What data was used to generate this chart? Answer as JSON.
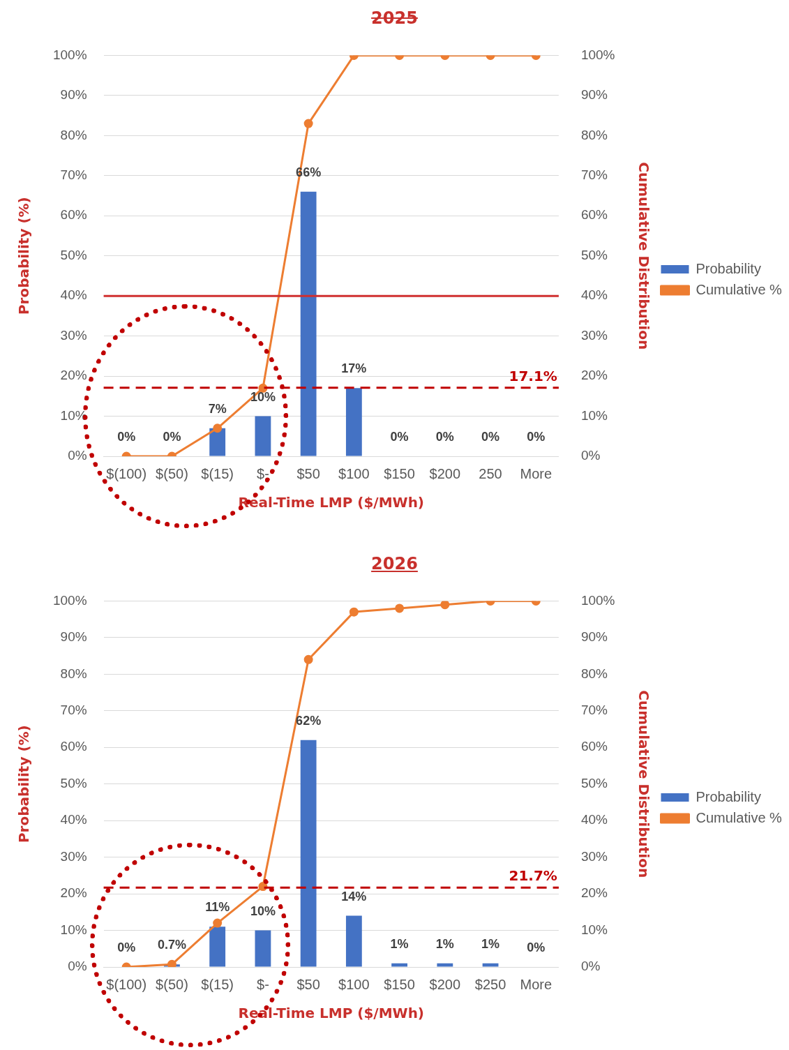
{
  "chart_data": [
    {
      "type": "bar",
      "title": "2025",
      "xlabel": "Real-Time LMP ($/MWh)",
      "ylabel": "Probability (%)",
      "y2label": "Cumulative Distribution",
      "categories": [
        "$(100)",
        "$(50)",
        "$(15)",
        "$-",
        "$50",
        "$100",
        "$150",
        "$200",
        "250",
        "More"
      ],
      "series": [
        {
          "name": "Probability",
          "color": "#4472c4",
          "values": [
            0,
            0,
            7,
            10,
            66,
            17,
            0,
            0,
            0,
            0
          ],
          "value_labels": [
            "0%",
            "0%",
            "7%",
            "10%",
            "66%",
            "17%",
            "0%",
            "0%",
            "0%",
            "0%"
          ]
        },
        {
          "name": "Cumulative %",
          "type": "line",
          "axis": "y2",
          "color": "#ed7d31",
          "marker": "circle",
          "values": [
            0,
            0,
            7,
            17,
            83,
            100,
            100,
            100,
            100,
            100
          ]
        }
      ],
      "ylim": [
        0,
        100
      ],
      "yticks": [
        {
          "value": 0,
          "label": "0%"
        },
        {
          "value": 10,
          "label": "10%"
        },
        {
          "value": 20,
          "label": "20%"
        },
        {
          "value": 30,
          "label": "30%"
        },
        {
          "value": 40,
          "label": "40%"
        },
        {
          "value": 50,
          "label": "50%"
        },
        {
          "value": 60,
          "label": "60%"
        },
        {
          "value": 70,
          "label": "70%"
        },
        {
          "value": 80,
          "label": "80%"
        },
        {
          "value": 90,
          "label": "90%"
        },
        {
          "value": 100,
          "label": "100%"
        }
      ],
      "y2lim": [
        0,
        100
      ],
      "y2ticks": [
        {
          "value": 0,
          "label": "0%"
        },
        {
          "value": 10,
          "label": "10%"
        },
        {
          "value": 20,
          "label": "20%"
        },
        {
          "value": 30,
          "label": "30%"
        },
        {
          "value": 40,
          "label": "40%"
        },
        {
          "value": 50,
          "label": "50%"
        },
        {
          "value": 60,
          "label": "60%"
        },
        {
          "value": 70,
          "label": "70%"
        },
        {
          "value": 80,
          "label": "80%"
        },
        {
          "value": 90,
          "label": "90%"
        },
        {
          "value": 100,
          "label": "100%"
        }
      ],
      "ref_lines": [
        {
          "axis": "y2",
          "value": 17.1,
          "label": "17.1%",
          "color": "#c00000",
          "line_style": "dashed"
        },
        {
          "axis": "y",
          "value": 40,
          "label": null,
          "color": "#d03030",
          "line_style": "solid"
        }
      ],
      "grid": "y",
      "legend": "right"
    },
    {
      "type": "bar",
      "title": "2026",
      "xlabel": "Real-Time LMP ($/MWh)",
      "ylabel": "Probability (%)",
      "y2label": "Cumulative Distribution",
      "categories": [
        "$(100)",
        "$(50)",
        "$(15)",
        "$-",
        "$50",
        "$100",
        "$150",
        "$200",
        "$250",
        "More"
      ],
      "series": [
        {
          "name": "Probability",
          "color": "#4472c4",
          "values": [
            0,
            0.7,
            11,
            10,
            62,
            14,
            1,
            1,
            1,
            0
          ],
          "value_labels": [
            "0%",
            "0.7%",
            "11%",
            "10%",
            "62%",
            "14%",
            "1%",
            "1%",
            "1%",
            "0%"
          ]
        },
        {
          "name": "Cumulative %",
          "type": "line",
          "axis": "y2",
          "color": "#ed7d31",
          "marker": "circle",
          "values": [
            0,
            0.7,
            12,
            22,
            84,
            97,
            98,
            99,
            100,
            100
          ]
        }
      ],
      "ylim": [
        0,
        100
      ],
      "yticks": [
        {
          "value": 0,
          "label": "0%"
        },
        {
          "value": 10,
          "label": "10%"
        },
        {
          "value": 20,
          "label": "20%"
        },
        {
          "value": 30,
          "label": "30%"
        },
        {
          "value": 40,
          "label": "40%"
        },
        {
          "value": 50,
          "label": "50%"
        },
        {
          "value": 60,
          "label": "60%"
        },
        {
          "value": 70,
          "label": "70%"
        },
        {
          "value": 80,
          "label": "80%"
        },
        {
          "value": 90,
          "label": "90%"
        },
        {
          "value": 100,
          "label": "100%"
        }
      ],
      "y2lim": [
        0,
        100
      ],
      "y2ticks": [
        {
          "value": 0,
          "label": "0%"
        },
        {
          "value": 10,
          "label": "10%"
        },
        {
          "value": 20,
          "label": "20%"
        },
        {
          "value": 30,
          "label": "30%"
        },
        {
          "value": 40,
          "label": "40%"
        },
        {
          "value": 50,
          "label": "50%"
        },
        {
          "value": 60,
          "label": "60%"
        },
        {
          "value": 70,
          "label": "70%"
        },
        {
          "value": 80,
          "label": "80%"
        },
        {
          "value": 90,
          "label": "90%"
        },
        {
          "value": 100,
          "label": "100%"
        }
      ],
      "ref_lines": [
        {
          "axis": "y2",
          "value": 21.7,
          "label": "21.7%",
          "color": "#c00000",
          "line_style": "dashed"
        }
      ],
      "grid": "y",
      "legend": "right"
    }
  ]
}
